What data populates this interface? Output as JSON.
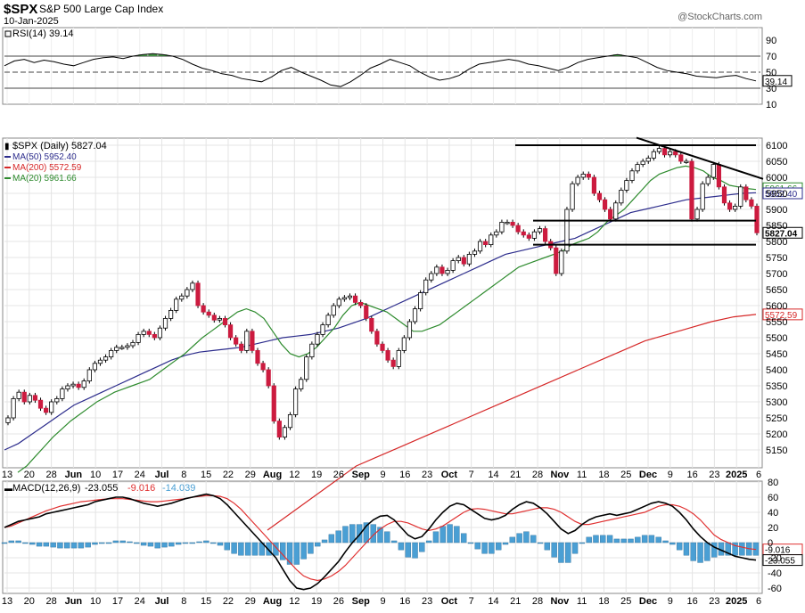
{
  "header": {
    "symbol": "$SPX",
    "name": "S&P 500 Large Cap Index",
    "date": "10-Jan-2025",
    "watermark": "@StockCharts.com"
  },
  "rsi_panel": {
    "label": "RSI(14) 39.14",
    "axis_ticks": [
      "90",
      "70",
      "50",
      "30",
      "10"
    ],
    "last_value_label": "39.14",
    "reference_lines": [
      70,
      50,
      30
    ]
  },
  "price_panel": {
    "legend": [
      {
        "text": "$SPX (Daily) 5827.04",
        "color": "#000000",
        "swatch": "candle-icon"
      },
      {
        "text": "MA(50) 5952.40",
        "color": "#2c2c8c"
      },
      {
        "text": "MA(200) 5572.59",
        "color": "#d62828"
      },
      {
        "text": "MA(20) 5961.66",
        "color": "#2e8b2e"
      }
    ],
    "axis_ticks": [
      "6100",
      "6050",
      "6000",
      "5950",
      "5900",
      "5850",
      "5800",
      "5750",
      "5700",
      "5650",
      "5600",
      "5550",
      "5500",
      "5450",
      "5400",
      "5350",
      "5300",
      "5250",
      "5200",
      "5150"
    ],
    "value_labels": {
      "close": "5827.04",
      "ma20": "5961.66",
      "ma50": "5952.40",
      "ma200": "5572.59"
    }
  },
  "macd_panel": {
    "label_name": "MACD(12,26,9)",
    "label_macd": "-23.055",
    "label_signal": "-9.016",
    "label_hist": "-14.039",
    "axis_ticks": [
      "80",
      "60",
      "40",
      "20",
      "0",
      "-20",
      "-40",
      "-60"
    ],
    "value_labels": {
      "signal": "-9.016",
      "macd": "-23.055"
    }
  },
  "x_axis_labels": [
    "13",
    "20",
    "28",
    "Jun",
    "10",
    "17",
    "24",
    "Jul",
    "8",
    "15",
    "22",
    "29",
    "Aug",
    "12",
    "19",
    "26",
    "Sep",
    "9",
    "16",
    "23",
    "Oct",
    "7",
    "14",
    "21",
    "28",
    "Nov",
    "11",
    "18",
    "25",
    "Dec",
    "9",
    "16",
    "23",
    "2025",
    "6"
  ],
  "x_axis_bold": [
    "Jun",
    "Jul",
    "Aug",
    "Sep",
    "Oct",
    "Nov",
    "Dec",
    "2025"
  ],
  "colors": {
    "up_candle": "#ffffff",
    "down_candle": "#cc1b3f",
    "ma20": "#2e8b2e",
    "ma50": "#2c2c8c",
    "ma200": "#d62828",
    "macd_line": "#000000",
    "signal_line": "#e03030",
    "histogram": "#4a9fd4",
    "rsi_fill_over70": "#2e8b2e"
  },
  "chart_data": {
    "type": "candlestick",
    "title": "$SPX S&P 500 Large Cap Index",
    "period": "Daily",
    "ylim": [
      5110,
      6150
    ],
    "grid": true,
    "support_resistance_levels": [
      6100,
      5865,
      5790
    ],
    "downtrend_line": [
      {
        "date": "Dec 2",
        "value": 6090
      },
      {
        "date": "Jan 10",
        "value": 5995
      }
    ],
    "close_values": [
      5250,
      5310,
      5330,
      5300,
      5320,
      5305,
      5280,
      5267,
      5300,
      5310,
      5340,
      5350,
      5355,
      5345,
      5365,
      5400,
      5420,
      5430,
      5440,
      5460,
      5470,
      5470,
      5475,
      5485,
      5510,
      5520,
      5510,
      5500,
      5530,
      5560,
      5585,
      5620,
      5630,
      5650,
      5670,
      5600,
      5580,
      5570,
      5555,
      5560,
      5540,
      5500,
      5480,
      5460,
      5520,
      5460,
      5420,
      5400,
      5350,
      5240,
      5190,
      5220,
      5260,
      5340,
      5370,
      5440,
      5480,
      5510,
      5540,
      5570,
      5600,
      5620,
      5625,
      5630,
      5610,
      5600,
      5560,
      5520,
      5480,
      5460,
      5430,
      5410,
      5460,
      5500,
      5550,
      5590,
      5640,
      5680,
      5700,
      5720,
      5700,
      5710,
      5740,
      5750,
      5730,
      5760,
      5770,
      5800,
      5790,
      5820,
      5830,
      5860,
      5860,
      5850,
      5830,
      5820,
      5810,
      5830,
      5840,
      5800,
      5780,
      5700,
      5770,
      5900,
      5980,
      6000,
      6010,
      6000,
      5950,
      5930,
      5900,
      5870,
      5920,
      5960,
      5990,
      6020,
      6040,
      6050,
      6060,
      6080,
      6090,
      6070,
      6080,
      6070,
      6050,
      6050,
      5870,
      5900,
      5980,
      6000,
      6040,
      5970,
      5920,
      5900,
      5910,
      5970,
      5930,
      5910,
      5827.04
    ],
    "series": [
      {
        "name": "MA(20)",
        "value": 5961.66
      },
      {
        "name": "MA(50)",
        "value": 5952.4
      },
      {
        "name": "MA(200)",
        "value": 5572.59
      }
    ],
    "ma20_values": [
      5080,
      5100,
      5130,
      5160,
      5190,
      5215,
      5240,
      5260,
      5280,
      5300,
      5315,
      5330,
      5340,
      5350,
      5360,
      5370,
      5390,
      5410,
      5430,
      5450,
      5475,
      5500,
      5520,
      5540,
      5560,
      5580,
      5590,
      5580,
      5560,
      5520,
      5480,
      5450,
      5440,
      5450,
      5470,
      5500,
      5530,
      5570,
      5600,
      5610,
      5600,
      5590,
      5580,
      5560,
      5540,
      5520,
      5520,
      5530,
      5540,
      5560,
      5580,
      5600,
      5620,
      5640,
      5660,
      5680,
      5700,
      5720,
      5730,
      5740,
      5750,
      5760,
      5770,
      5790,
      5800,
      5810,
      5830,
      5860,
      5880,
      5900,
      5930,
      5960,
      5990,
      6010,
      6020,
      6030,
      6035,
      6030,
      6020,
      6000,
      5990,
      5975,
      5970,
      5965,
      5962
    ],
    "ma50_values": [
      5150,
      5170,
      5200,
      5230,
      5260,
      5290,
      5310,
      5330,
      5350,
      5370,
      5390,
      5410,
      5430,
      5445,
      5455,
      5460,
      5465,
      5470,
      5480,
      5490,
      5500,
      5505,
      5510,
      5520,
      5530,
      5545,
      5560,
      5580,
      5600,
      5620,
      5640,
      5660,
      5680,
      5700,
      5720,
      5740,
      5760,
      5770,
      5780,
      5790,
      5800,
      5810,
      5830,
      5850,
      5870,
      5890,
      5900,
      5910,
      5920,
      5930,
      5935,
      5940,
      5945,
      5950,
      5952
    ],
    "ma200_values": [
      4900,
      4950,
      5000,
      5050,
      5100,
      5130,
      5160,
      5190,
      5220,
      5250,
      5280,
      5310,
      5340,
      5370,
      5400,
      5430,
      5460,
      5490,
      5510,
      5530,
      5550,
      5565,
      5572.59
    ],
    "rsi_values": [
      58,
      64,
      66,
      62,
      65,
      63,
      60,
      58,
      62,
      66,
      68,
      69,
      67,
      70,
      72,
      73,
      72,
      70,
      66,
      60,
      55,
      52,
      48,
      46,
      42,
      40,
      38,
      44,
      52,
      56,
      50,
      45,
      40,
      34,
      32,
      38,
      46,
      55,
      60,
      66,
      62,
      58,
      50,
      44,
      40,
      42,
      46,
      54,
      60,
      62,
      64,
      66,
      64,
      60,
      58,
      55,
      52,
      56,
      62,
      66,
      68,
      70,
      72,
      70,
      68,
      62,
      56,
      52,
      50,
      48,
      45,
      44,
      43,
      45,
      46,
      42,
      39.14
    ],
    "macd_values": [
      20,
      24,
      28,
      30,
      32,
      34,
      38,
      40,
      42,
      44,
      46,
      48,
      50,
      54,
      56,
      58,
      60,
      60,
      58,
      55,
      52,
      50,
      48,
      50,
      52,
      55,
      58,
      60,
      62,
      64,
      62,
      58,
      50,
      40,
      30,
      20,
      10,
      0,
      -10,
      -20,
      -35,
      -50,
      -60,
      -62,
      -60,
      -54,
      -45,
      -35,
      -25,
      -12,
      0,
      10,
      22,
      30,
      35,
      36,
      30,
      20,
      10,
      5,
      8,
      18,
      30,
      40,
      48,
      52,
      50,
      44,
      38,
      32,
      30,
      32,
      36,
      44,
      50,
      54,
      52,
      46,
      38,
      28,
      18,
      12,
      16,
      24,
      30,
      34,
      36,
      38,
      36,
      38,
      40,
      44,
      48,
      52,
      54,
      52,
      48,
      40,
      30,
      18,
      8,
      0,
      -6,
      -10,
      -14,
      -18,
      -20,
      -22,
      -23.055
    ],
    "signal_values": [
      20,
      22,
      26,
      30,
      34,
      38,
      42,
      45,
      48,
      50,
      52,
      54,
      55,
      56,
      57,
      58,
      58,
      58,
      57,
      56,
      55,
      54,
      54,
      55,
      56,
      57,
      58,
      60,
      61,
      62,
      62,
      61,
      58,
      52,
      44,
      34,
      24,
      14,
      4,
      -6,
      -16,
      -26,
      -36,
      -44,
      -48,
      -50,
      -48,
      -44,
      -38,
      -30,
      -20,
      -10,
      0,
      10,
      18,
      24,
      28,
      28,
      26,
      22,
      18,
      16,
      18,
      22,
      28,
      34,
      40,
      44,
      45,
      44,
      42,
      40,
      38,
      38,
      40,
      42,
      44,
      46,
      46,
      44,
      40,
      34,
      28,
      24,
      24,
      26,
      28,
      30,
      32,
      34,
      36,
      38,
      40,
      44,
      48,
      50,
      50,
      48,
      44,
      38,
      30,
      20,
      10,
      4,
      0,
      -4,
      -6,
      -8,
      -9.016
    ]
  }
}
